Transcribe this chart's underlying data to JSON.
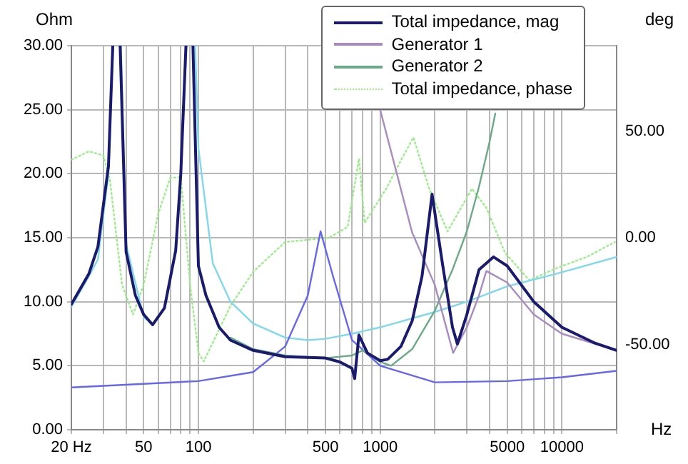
{
  "chart_data": {
    "type": "line",
    "ylabel": "Ohm",
    "y2label": "deg",
    "xlabel": "Hz",
    "log": "x",
    "grid": true,
    "legend": "top right",
    "marker": "none",
    "xlim": [
      20,
      20000
    ],
    "xticks": [
      {
        "value": 20,
        "label": "20 Hz"
      },
      {
        "value": 30,
        "label": null
      },
      {
        "value": 40,
        "label": null
      },
      50,
      {
        "value": 60,
        "label": null
      },
      {
        "value": 70,
        "label": null
      },
      {
        "value": 80,
        "label": null
      },
      {
        "value": 90,
        "label": null
      },
      100,
      {
        "value": 200,
        "label": null
      },
      {
        "value": 300,
        "label": null
      },
      {
        "value": 400,
        "label": null
      },
      500,
      {
        "value": 600,
        "label": null
      },
      {
        "value": 700,
        "label": null
      },
      {
        "value": 800,
        "label": null
      },
      {
        "value": 900,
        "label": null
      },
      1000,
      {
        "value": 2000,
        "label": null
      },
      {
        "value": 3000,
        "label": null
      },
      {
        "value": 4000,
        "label": null
      },
      5000,
      {
        "value": 6000,
        "label": null
      },
      {
        "value": 7000,
        "label": null
      },
      {
        "value": 8000,
        "label": null
      },
      {
        "value": 9000,
        "label": null
      },
      10000,
      {
        "value": 20000,
        "label": null
      }
    ],
    "ylim": [
      0,
      30
    ],
    "yticks": [
      {
        "value": 0,
        "label": "0.00"
      },
      {
        "value": 5,
        "label": "5.00"
      },
      {
        "value": 10,
        "label": "10.00"
      },
      {
        "value": 15,
        "label": "15.00"
      },
      {
        "value": 20,
        "label": "20.00"
      },
      {
        "value": 25,
        "label": "25.00"
      },
      {
        "value": 30,
        "label": "30.00"
      }
    ],
    "y2lim": [
      -90,
      90
    ],
    "y2ticks": [
      {
        "value": -50,
        "label": "-50.00"
      },
      {
        "value": 0,
        "label": "0.00"
      },
      {
        "value": 50,
        "label": "50.00"
      }
    ],
    "series": [
      {
        "name": "Total impedance, mag",
        "color": "#1a1a6e",
        "x": [
          20,
          25,
          28,
          32,
          33.8,
          35.5,
          37.1,
          40,
          45,
          50,
          56,
          65,
          75,
          80,
          85.4,
          89,
          93.3,
          100,
          110,
          130,
          150,
          200,
          300,
          500,
          600,
          700,
          724,
          764,
          850,
          1000,
          1100,
          1300,
          1500,
          1700,
          1930,
          2200,
          2500,
          2660,
          3000,
          3500,
          4200,
          5000,
          7000,
          10000,
          15000,
          20000
        ],
        "values": [
          9.8,
          12.2,
          14.3,
          20.6,
          30,
          null,
          30,
          13.9,
          10.5,
          9,
          8.2,
          9.5,
          14,
          20,
          30,
          null,
          30,
          12.8,
          10.5,
          8,
          7,
          6.2,
          5.7,
          5.6,
          5.3,
          4.8,
          4,
          7.4,
          6,
          5.4,
          5.5,
          6.5,
          8.5,
          12,
          18.4,
          13,
          8,
          6.7,
          9,
          12.5,
          13.5,
          12.8,
          10,
          8,
          6.8,
          6.2
        ]
      },
      {
        "name": "Generator 1",
        "color": "#a88bc0",
        "x": [
          1000,
          1500,
          2000,
          2520,
          3000,
          3500,
          3840,
          5000,
          7000,
          10000,
          20000
        ],
        "values": [
          25,
          15.4,
          11.3,
          6,
          8,
          10.5,
          12.4,
          11.5,
          9,
          7.5,
          6.2
        ]
      },
      {
        "name": "Generator 2",
        "color": "#6aaa88",
        "x": [
          150,
          200,
          300,
          500,
          700,
          800,
          1000,
          1150,
          1500,
          2000,
          2500,
          3000,
          3500,
          4000,
          4300
        ],
        "values": [
          7.2,
          6.3,
          5.8,
          5.6,
          5.8,
          6.2,
          5.3,
          5,
          6.3,
          9.3,
          12.5,
          15.5,
          19,
          22.5,
          24.7
        ]
      },
      {
        "color": "#6666ee",
        "x": [
          20,
          100,
          200,
          300,
          400,
          470,
          550,
          700,
          1000,
          2000,
          5000,
          10000,
          20000
        ],
        "values": [
          3.3,
          3.8,
          4.5,
          6.5,
          10.5,
          15.5,
          12,
          7,
          5,
          3.7,
          3.8,
          4.1,
          4.6
        ]
      },
      {
        "color": "#7fd8ec",
        "x": [
          20,
          25,
          28,
          32,
          33.8,
          35.5,
          37.5,
          40,
          50,
          56,
          65,
          75,
          80,
          86,
          91,
          96,
          100,
          120,
          150,
          200,
          300,
          400,
          500,
          700,
          1000,
          2000,
          3000,
          5000,
          10000,
          20000
        ],
        "values": [
          9.6,
          12,
          13.3,
          20,
          30,
          null,
          30,
          14.5,
          8.8,
          8.2,
          9.5,
          14,
          20,
          30,
          null,
          30,
          22,
          13,
          10,
          8.3,
          7.2,
          7,
          7.1,
          7.5,
          8,
          9.2,
          10,
          11.2,
          12.3,
          13.5
        ]
      },
      {
        "name": "Total impedance, phase",
        "color": "#99ee88",
        "line_style": "dotted",
        "axis": "y2",
        "x": [
          20,
          25,
          30,
          32.6,
          38,
          43.7,
          50,
          60,
          70,
          80,
          90,
          100,
          107,
          150,
          200,
          300,
          400,
          522,
          662,
          765,
          822,
          1080,
          1295,
          1524,
          1860,
          2350,
          3200,
          3840,
          4860,
          6620,
          9500,
          13700,
          19600
        ],
        "values": [
          36.5,
          40.5,
          38.5,
          27,
          -22,
          -36,
          -22,
          11,
          28,
          28.4,
          -22,
          -54,
          -58,
          -32,
          -16,
          -2,
          -1,
          0,
          5,
          37,
          7,
          23,
          36,
          47,
          23,
          3,
          23,
          14,
          -7,
          -20,
          -14,
          -9,
          -2
        ]
      }
    ]
  }
}
